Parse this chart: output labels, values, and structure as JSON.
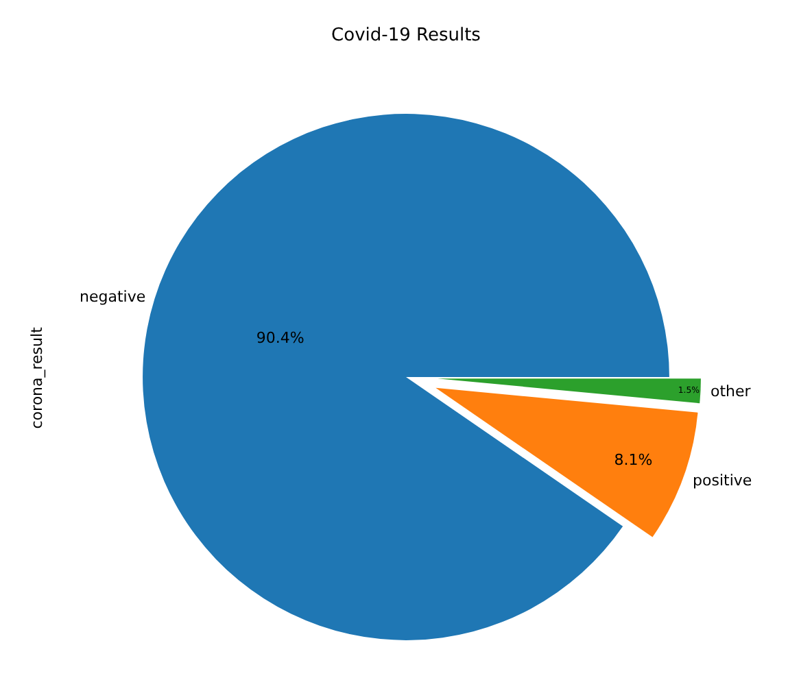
{
  "chart_data": {
    "type": "pie",
    "title": "Covid-19 Results",
    "ylabel": "corona_result",
    "categories": [
      "negative",
      "positive",
      "other"
    ],
    "values": [
      90.4,
      8.1,
      1.5
    ],
    "colors": [
      "#1f77b4",
      "#ff7f0e",
      "#2ca02c"
    ],
    "value_labels": [
      "90.4%",
      "8.1%",
      "1.5%"
    ],
    "legend": false
  }
}
